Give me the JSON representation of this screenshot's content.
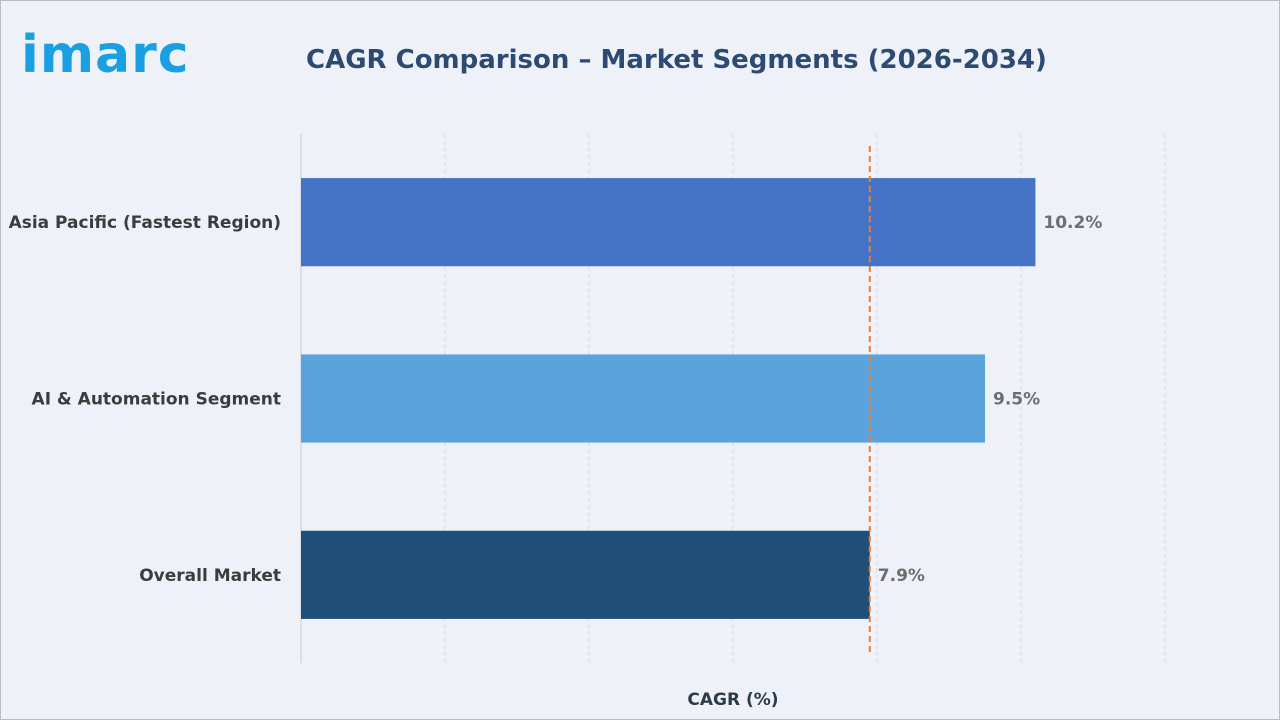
{
  "brand": {
    "logo_text": "imarc",
    "logo_color": "#1aa0e2"
  },
  "header": {
    "title": "CAGR Comparison – Market Segments (2026-2034)"
  },
  "chart_data": {
    "type": "bar",
    "orientation": "horizontal",
    "title": "CAGR Comparison – Market Segments (2026-2034)",
    "xlabel": "CAGR (%)",
    "ylabel": "",
    "categories": [
      "Asia Pacific (Fastest Region)",
      "AI & Automation Segment",
      "Overall Market"
    ],
    "values": [
      10.2,
      9.5,
      7.9
    ],
    "data_labels": [
      "10.2%",
      "9.5%",
      "7.9%"
    ],
    "colors": [
      "#4472c4",
      "#5ba3dc",
      "#1f4e79"
    ],
    "xlim": [
      0,
      12
    ],
    "grid": true,
    "reference_line": {
      "value": 7.9,
      "style": "dashed",
      "color": "#ed7d31"
    }
  }
}
